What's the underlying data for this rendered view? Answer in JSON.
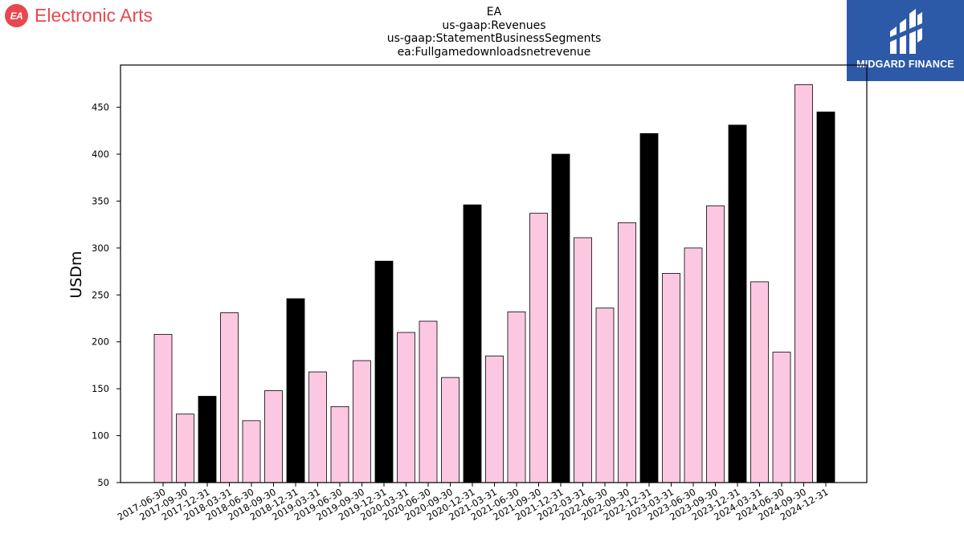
{
  "brand": {
    "name": "Electronic Arts",
    "badge_text": "EA",
    "color": "#e8484e"
  },
  "corner_logo": {
    "name": "MIDGARD FINANCE",
    "background": "#2d5aa8",
    "icon": "midgard-monogram-icon"
  },
  "chart_data": {
    "type": "bar",
    "title_lines": [
      "EA",
      "us-gaap:Revenues",
      "us-gaap:StatementBusinessSegments",
      "ea:Fullgamedownloadsnetrevenue"
    ],
    "xlabel": "",
    "ylabel": "USDm",
    "ylim": [
      50,
      495
    ],
    "yticks": [
      50,
      100,
      150,
      200,
      250,
      300,
      350,
      400,
      450
    ],
    "grid": false,
    "categories": [
      "2017-06-30",
      "2017-09-30",
      "2017-12-31",
      "2018-03-31",
      "2018-06-30",
      "2018-09-30",
      "2018-12-31",
      "2019-03-31",
      "2019-06-30",
      "2019-09-30",
      "2019-12-31",
      "2020-03-31",
      "2020-06-30",
      "2020-09-30",
      "2020-12-31",
      "2021-03-31",
      "2021-06-30",
      "2021-09-30",
      "2021-12-31",
      "2022-03-31",
      "2022-06-30",
      "2022-09-30",
      "2022-12-31",
      "2023-03-31",
      "2023-06-30",
      "2023-09-30",
      "2023-12-31",
      "2024-03-31",
      "2024-06-30",
      "2024-09-30",
      "2024-12-31"
    ],
    "values": [
      208,
      123,
      142,
      231,
      116,
      148,
      246,
      168,
      131,
      180,
      286,
      210,
      222,
      162,
      346,
      185,
      232,
      337,
      400,
      311,
      236,
      327,
      422,
      273,
      300,
      345,
      431,
      264,
      189,
      474,
      445
    ],
    "colors": {
      "default": "#fcc8e1",
      "december_quarter": "#000000",
      "edge": "#000000"
    }
  }
}
